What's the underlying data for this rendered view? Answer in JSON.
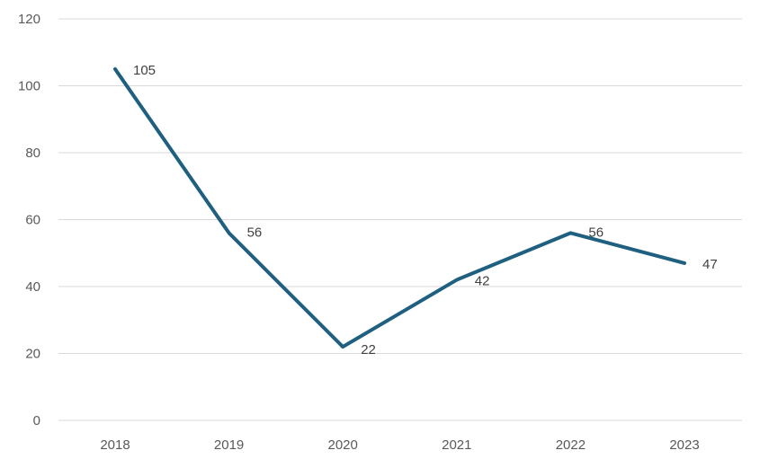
{
  "chart_data": {
    "type": "line",
    "title": "",
    "xlabel": "",
    "ylabel": "",
    "categories": [
      "2018",
      "2019",
      "2020",
      "2021",
      "2022",
      "2023"
    ],
    "series": [
      {
        "name": "Series 1",
        "values": [
          105,
          56,
          22,
          42,
          56,
          47
        ],
        "color": "#1f5f7f"
      }
    ],
    "data_labels": [
      "105",
      "56",
      "22",
      "42",
      "56",
      "47"
    ],
    "ylim": [
      0,
      120
    ],
    "yticks": [
      0,
      20,
      40,
      60,
      80,
      100,
      120
    ],
    "ytick_labels": [
      "0",
      "20",
      "40",
      "60",
      "80",
      "100",
      "120"
    ],
    "grid": true,
    "legend": "none"
  }
}
